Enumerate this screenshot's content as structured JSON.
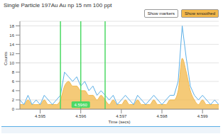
{
  "chart_data": {
    "type": "line",
    "title": "Single Particle 197Au Au np 15 nm 100 ppt",
    "buttons": [
      "Show markers",
      "Show smoothed"
    ],
    "x_label": "Time (secs)",
    "y_label": "Counts",
    "x": [
      4.5945,
      4.5946,
      4.5947,
      4.5948,
      4.5949,
      4.595,
      4.5951,
      4.5952,
      4.5953,
      4.5954,
      4.5955,
      4.5956,
      4.5957,
      4.5958,
      4.5959,
      4.596,
      4.5961,
      4.5962,
      4.5963,
      4.5964,
      4.5965,
      4.5966,
      4.5967,
      4.5968,
      4.5969,
      4.597,
      4.5971,
      4.5972,
      4.5973,
      4.5974,
      4.5975,
      4.5976,
      4.5977,
      4.5978,
      4.5979,
      4.598,
      4.5981,
      4.5982,
      4.5983,
      4.5984,
      4.5985,
      4.5986,
      4.5987,
      4.5988,
      4.5989,
      4.599,
      4.5991,
      4.5992,
      4.5993,
      4.5994
    ],
    "series": [
      {
        "type": "area",
        "color": "#f2b84b",
        "values": [
          1,
          1,
          2,
          1,
          1,
          1,
          2,
          1,
          1,
          1,
          2,
          5,
          6,
          5,
          5,
          4,
          4,
          3,
          3,
          2,
          3,
          2,
          1,
          2,
          1,
          1,
          2,
          1,
          1,
          2,
          1,
          1,
          1,
          2,
          1,
          1,
          1,
          2,
          2,
          4,
          11,
          8,
          4,
          2,
          1,
          2,
          1,
          1,
          1,
          1
        ]
      },
      {
        "type": "line",
        "color": "#5aaee6",
        "values": [
          2,
          1,
          3,
          1,
          2,
          1,
          3,
          2,
          1,
          2,
          3,
          8,
          7,
          6,
          7,
          5,
          6,
          4,
          5,
          3,
          4,
          3,
          2,
          3,
          1,
          2,
          3,
          2,
          1,
          3,
          2,
          1,
          2,
          3,
          2,
          1,
          2,
          3,
          3,
          6,
          18,
          11,
          5,
          3,
          2,
          3,
          2,
          1,
          2,
          1
        ]
      }
    ],
    "xlim": [
      4.5945,
      4.5994
    ],
    "xticks": [
      4.595,
      4.596,
      4.597,
      4.598,
      4.599
    ],
    "ylim": [
      0,
      19
    ],
    "yticks": [
      0,
      2,
      4,
      6,
      8,
      10,
      12,
      14,
      16,
      18
    ],
    "grid": true,
    "annotations": [
      {
        "x": 4.5955,
        "color": "#4cd964"
      },
      {
        "x": 4.596,
        "label": "4.5960",
        "color": "#4cd964"
      },
      {
        "x": 4.5966,
        "color": "#4cd964"
      }
    ]
  }
}
